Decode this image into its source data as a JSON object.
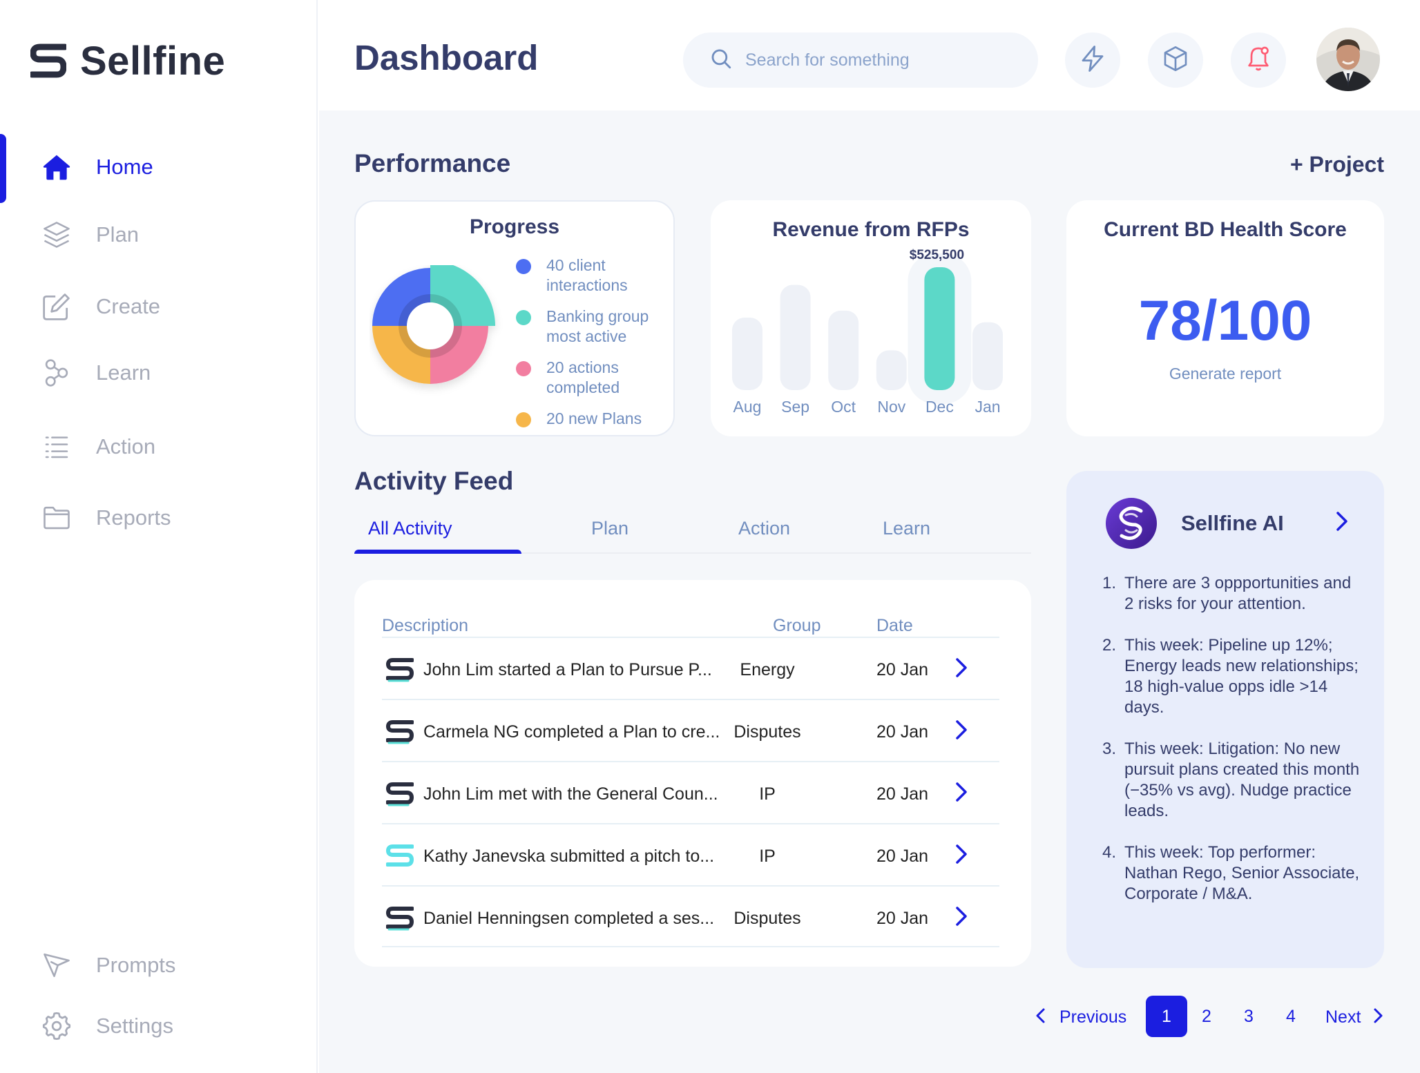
{
  "app": {
    "name": "Sellfine"
  },
  "sidebar": {
    "items": [
      {
        "label": "Home",
        "icon": "home-icon",
        "active": true
      },
      {
        "label": "Plan",
        "icon": "layers-icon"
      },
      {
        "label": "Create",
        "icon": "edit-icon"
      },
      {
        "label": "Learn",
        "icon": "nodes-icon"
      },
      {
        "label": "Action",
        "icon": "list-icon"
      },
      {
        "label": "Reports",
        "icon": "folder-icon"
      }
    ],
    "bottom_items": [
      {
        "label": "Prompts",
        "icon": "send-icon"
      },
      {
        "label": "Settings",
        "icon": "gear-icon"
      }
    ]
  },
  "header": {
    "title": "Dashboard",
    "search_placeholder": "Search for something",
    "icons": [
      "lightning-icon",
      "cube-icon",
      "bell-icon"
    ],
    "avatar": "avatar"
  },
  "performance": {
    "title": "Performance",
    "add_project": "+ Project",
    "progress": {
      "title": "Progress",
      "legend": [
        {
          "label": "40 client interactions",
          "color": "#4d6ef2"
        },
        {
          "label": "Banking group most active",
          "color": "#5cd8c8"
        },
        {
          "label": "20 actions completed",
          "color": "#f27ea0"
        },
        {
          "label": "20 new Plans",
          "color": "#f6b64a"
        }
      ]
    },
    "revenue": {
      "title": "Revenue from RFPs",
      "peak_label": "$525,500"
    },
    "health": {
      "title": "Current BD Health Score",
      "score": "78/100",
      "action": "Generate report"
    }
  },
  "chart_data": {
    "type": "bar",
    "title": "Revenue from RFPs",
    "categories": [
      "Aug",
      "Sep",
      "Oct",
      "Nov",
      "Dec",
      "Jan"
    ],
    "values": [
      310000,
      450000,
      340000,
      170000,
      525500,
      290000
    ],
    "highlight": "Dec",
    "highlight_color": "#5cd8c8",
    "bar_color": "#eef1f7",
    "data_labels": {
      "Dec": "$525,500"
    },
    "ylim": [
      0,
      525500
    ]
  },
  "activity": {
    "title": "Activity Feed",
    "tabs": [
      "All Activity",
      "Plan",
      "Action",
      "Learn"
    ],
    "active_tab": "All Activity",
    "columns": {
      "description": "Description",
      "group": "Group",
      "date": "Date"
    },
    "rows": [
      {
        "description": "John Lim started a Plan to Pursue P...",
        "group": "Energy",
        "date": "20 Jan",
        "icon": "sellfine-dark"
      },
      {
        "description": "Carmela NG completed a Plan to cre...",
        "group": "Disputes",
        "date": "20 Jan",
        "icon": "sellfine-dark"
      },
      {
        "description": "John Lim met with the General Coun...",
        "group": "IP",
        "date": "20 Jan",
        "icon": "sellfine-dark"
      },
      {
        "description": "Kathy Janevska submitted a pitch to...",
        "group": "IP",
        "date": "20 Jan",
        "icon": "sellfine-teal"
      },
      {
        "description": "Daniel Henningsen completed a ses...",
        "group": "Disputes",
        "date": "20 Jan",
        "icon": "sellfine-dark"
      }
    ]
  },
  "ai": {
    "title": "Sellfine AI",
    "items": [
      {
        "num": "1.",
        "text": "There are 3 oppportunities and 2 risks for your attention."
      },
      {
        "num": "2.",
        "text": "This week: Pipeline up 12%; Energy leads new relationships; 18 high-value opps idle >14 days."
      },
      {
        "num": "3.",
        "text": "This week: Litigation: No new pursuit plans created this month (−35% vs avg). Nudge practice leads."
      },
      {
        "num": "4.",
        "text": "This week: Top performer: Nathan Rego, Senior Associate, Corporate / M&A."
      }
    ]
  },
  "pagination": {
    "previous": "Previous",
    "next": "Next",
    "pages": [
      "1",
      "2",
      "3",
      "4"
    ],
    "current": "1"
  },
  "colors": {
    "accent": "#1b1ee0",
    "heading": "#343c6a",
    "muted": "#718ebf",
    "score": "#3c5cf0",
    "teal": "#5cd8c8"
  }
}
